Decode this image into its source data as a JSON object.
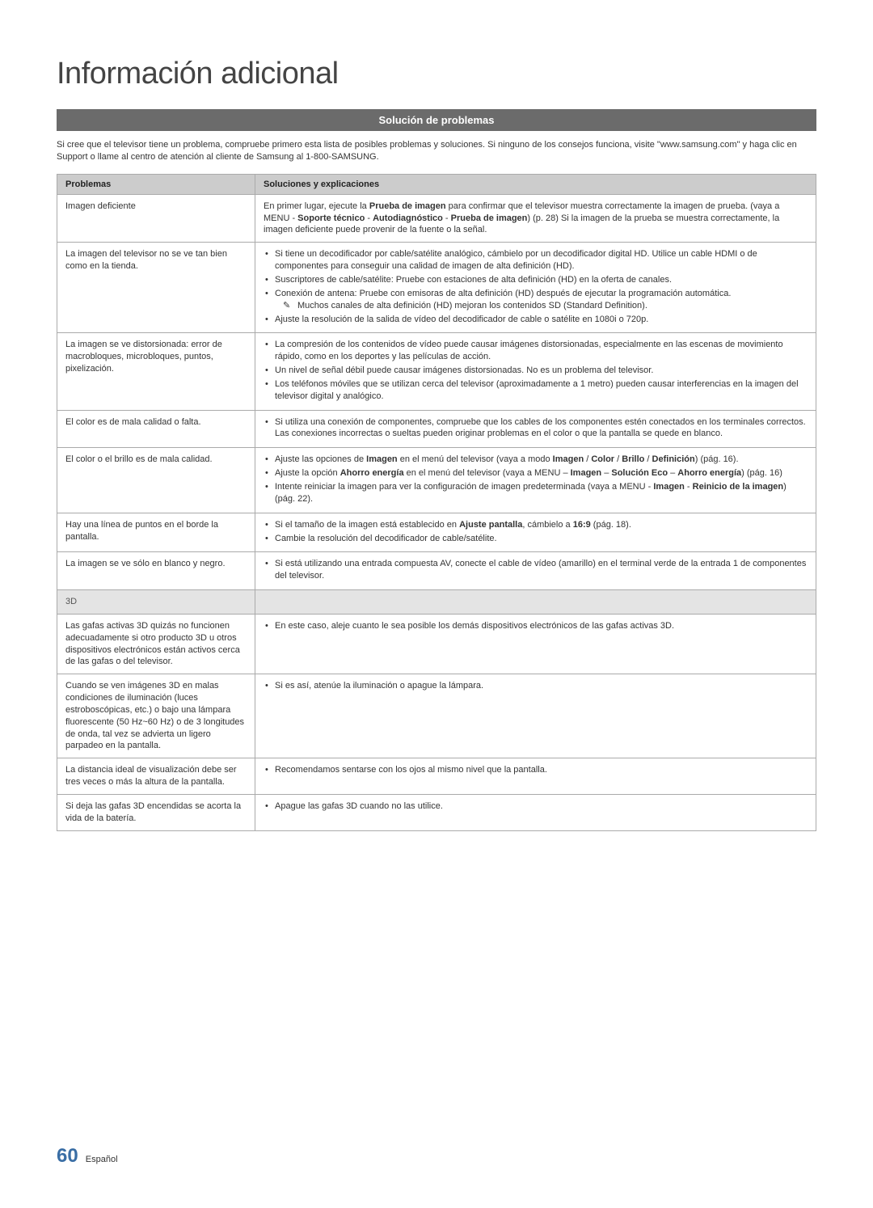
{
  "page": {
    "title": "Información adicional",
    "section_header": "Solución de problemas",
    "intro": "Si cree que el televisor tiene un problema, compruebe primero esta lista de posibles problemas y soluciones. Si ninguno de los consejos funciona, visite \"www.samsung.com\" y haga clic en Support o llame al centro de atención al cliente de Samsung al 1-800-SAMSUNG.",
    "table": {
      "headers": [
        "Problemas",
        "Soluciones y explicaciones"
      ]
    },
    "rows": {
      "r1": {
        "problem": "Imagen deficiente",
        "sol_pre": "En primer lugar, ejecute la ",
        "sol_b1": "Prueba de imagen",
        "sol_mid1": " para confirmar que el televisor muestra correctamente la imagen de prueba. (vaya a MENU - ",
        "sol_b2": "Soporte técnico",
        "sol_mid2": " - ",
        "sol_b3": "Autodiagnóstico",
        "sol_mid3": " - ",
        "sol_b4": "Prueba de imagen",
        "sol_post": ") (p. 28) Si la imagen de la prueba se muestra correctamente, la imagen deficiente puede provenir de la fuente o la señal."
      },
      "r2": {
        "problem": "La imagen del televisor no se ve tan bien como en la tienda.",
        "b1": "Si tiene un decodificador por cable/satélite analógico, cámbielo por un decodificador digital HD. Utilice un cable HDMI o de componentes para conseguir una calidad de imagen de alta definición (HD).",
        "b2": "Suscriptores de cable/satélite: Pruebe con estaciones de alta definición (HD) en la oferta de canales.",
        "b3": "Conexión de antena: Pruebe con emisoras de alta definición (HD) después de ejecutar la programación automática.",
        "note": "Muchos canales de alta definición (HD) mejoran los contenidos SD (Standard Definition).",
        "b4": "Ajuste la resolución de la salida de vídeo del decodificador de cable o satélite en 1080i o 720p."
      },
      "r3": {
        "problem": "La imagen se ve distorsionada: error de macrobloques, microbloques, puntos, pixelización.",
        "b1": "La compresión de los contenidos de vídeo puede causar imágenes distorsionadas, especialmente en las escenas de movimiento rápido, como en los deportes y las películas de acción.",
        "b2": "Un nivel de señal débil puede causar imágenes distorsionadas. No es un problema del televisor.",
        "b3": "Los teléfonos móviles que se utilizan cerca del televisor (aproximadamente a 1 metro) pueden causar interferencias en la imagen del televisor digital y analógico."
      },
      "r4": {
        "problem": "El color es de mala calidad o falta.",
        "b1": "Si utiliza una conexión de componentes, compruebe que los cables de los componentes estén conectados en los terminales correctos. Las conexiones incorrectas o sueltas pueden originar problemas en el color o que la pantalla se quede en blanco."
      },
      "r5": {
        "problem": "El color o el brillo es de mala calidad.",
        "b1_pre": "Ajuste las opciones de ",
        "b1_b1": "Imagen",
        "b1_mid1": " en el menú del televisor (vaya a modo ",
        "b1_b2": "Imagen",
        "b1_mid2": " / ",
        "b1_b3": "Color",
        "b1_mid3": " / ",
        "b1_b4": "Brillo",
        "b1_mid4": " / ",
        "b1_b5": "Definición",
        "b1_post": ") (pág. 16).",
        "b2_pre": "Ajuste la opción ",
        "b2_b1": "Ahorro energía",
        "b2_mid1": " en el menú del televisor (vaya a MENU – ",
        "b2_b2": "Imagen",
        "b2_mid2": " – ",
        "b2_b3": "Solución Eco",
        "b2_mid3": " – ",
        "b2_b4": "Ahorro energía",
        "b2_post": ") (pág. 16)",
        "b3_pre": "Intente reiniciar la imagen para ver la configuración de imagen predeterminada (vaya a MENU - ",
        "b3_b1": "Imagen",
        "b3_mid1": " - ",
        "b3_b2": "Reinicio de la imagen",
        "b3_post": ") (pág. 22)."
      },
      "r6": {
        "problem": "Hay una línea de puntos en el borde la pantalla.",
        "b1_pre": "Si el tamaño de la imagen está establecido en ",
        "b1_b1": "Ajuste pantalla",
        "b1_mid": ", cámbielo a ",
        "b1_b2": "16:9",
        "b1_post": " (pág. 18).",
        "b2": "Cambie la resolución del decodificador de cable/satélite."
      },
      "r7": {
        "problem": "La imagen se ve sólo en blanco y negro.",
        "b1": "Si está utilizando una entrada compuesta AV, conecte el cable de vídeo (amarillo) en el terminal verde de la entrada 1 de componentes del televisor."
      },
      "section3d": "3D",
      "r8": {
        "problem": "Las gafas activas 3D quizás no funcionen adecuadamente si otro producto 3D u otros dispositivos electrónicos están activos cerca de las gafas o del televisor.",
        "b1": "En este caso, aleje cuanto le sea posible los demás dispositivos electrónicos de las gafas activas 3D."
      },
      "r9": {
        "problem": "Cuando se ven imágenes 3D en malas condiciones de iluminación (luces estroboscópicas, etc.) o bajo una lámpara fluorescente (50 Hz~60 Hz) o de 3 longitudes de onda, tal vez se advierta un ligero parpadeo en la pantalla.",
        "b1": "Si es así, atenúe la iluminación o apague la lámpara."
      },
      "r10": {
        "problem": "La distancia ideal de visualización debe ser tres veces o más la altura de la pantalla.",
        "b1": "Recomendamos sentarse con los ojos al mismo nivel que la pantalla."
      },
      "r11": {
        "problem": "Si deja las gafas 3D encendidas se acorta la vida de la batería.",
        "b1": "Apague las gafas 3D cuando no las utilice."
      }
    },
    "footer": {
      "page_num": "60",
      "lang": "Español"
    }
  },
  "colors": {
    "header_bg": "#6b6b6b",
    "header_text": "#ffffff",
    "th_bg": "#cccccc",
    "section_row_bg": "#e4e4e4",
    "border": "#aaaaaa",
    "page_num": "#3a6ea5",
    "body_text": "#333333"
  },
  "typography": {
    "title_size": 38,
    "body_size": 11,
    "page_num_size": 24
  }
}
